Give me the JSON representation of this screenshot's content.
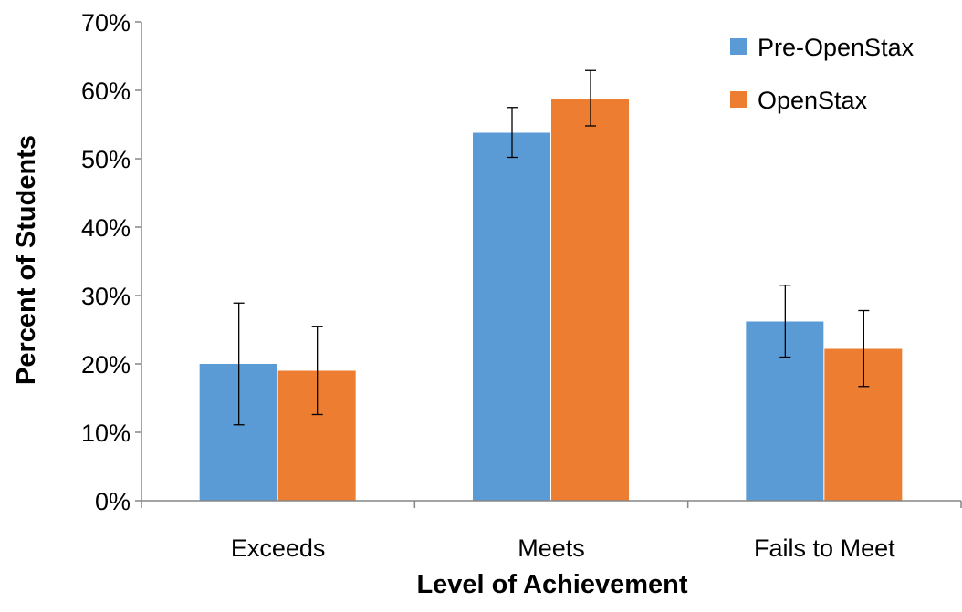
{
  "chart_data": {
    "type": "bar",
    "categories": [
      "Exceeds",
      "Meets",
      "Fails to Meet"
    ],
    "series": [
      {
        "name": "Pre-OpenStax",
        "color": "#5B9BD5",
        "values": [
          0.2,
          0.538,
          0.262
        ],
        "error_low": [
          0.111,
          0.502,
          0.21
        ],
        "error_high": [
          0.289,
          0.575,
          0.315
        ]
      },
      {
        "name": "OpenStax",
        "color": "#ED7D31",
        "values": [
          0.19,
          0.588,
          0.222
        ],
        "error_low": [
          0.126,
          0.548,
          0.167
        ],
        "error_high": [
          0.255,
          0.629,
          0.278
        ]
      }
    ],
    "xlabel": "Level of Achievement",
    "ylabel": "Percent of Students",
    "ylim": [
      0,
      0.7
    ],
    "yticks": [
      0,
      0.1,
      0.2,
      0.3,
      0.4,
      0.5,
      0.6,
      0.7
    ],
    "ytick_labels": [
      "0%",
      "10%",
      "20%",
      "30%",
      "40%",
      "50%",
      "60%",
      "70%"
    ],
    "grid": false,
    "legend_position": "top-right"
  }
}
